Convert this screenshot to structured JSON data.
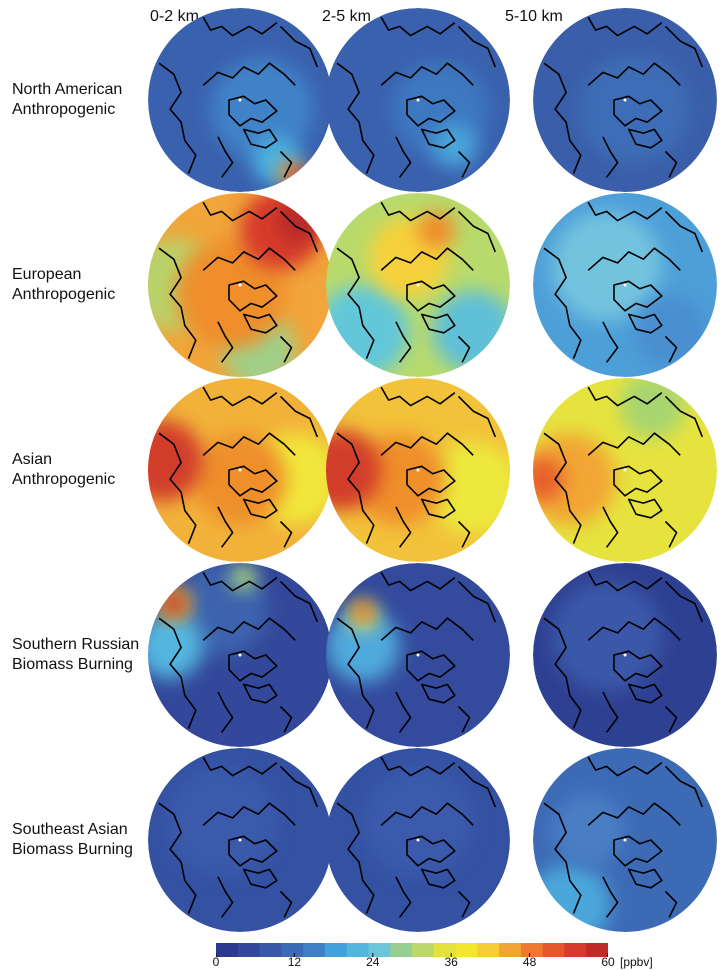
{
  "columns": [
    "0-2 km",
    "2-5 km",
    "5-10 km"
  ],
  "rows": [
    {
      "line1": "North American",
      "line2": "Anthropogenic",
      "panels": [
        {
          "base": "#3a61ad",
          "blobs": [
            {
              "fx": 0.62,
              "fy": 0.55,
              "r": 0.28,
              "color": "#3f82c8"
            },
            {
              "fx": 0.7,
              "fy": 0.83,
              "r": 0.13,
              "color": "#4cb3e0"
            },
            {
              "fx": 0.78,
              "fy": 0.9,
              "r": 0.07,
              "color": "#f08a26"
            },
            {
              "fx": 0.82,
              "fy": 0.92,
              "r": 0.04,
              "color": "#d7312a"
            }
          ]
        },
        {
          "base": "#3a61ad",
          "blobs": [
            {
              "fx": 0.62,
              "fy": 0.55,
              "r": 0.26,
              "color": "#3e78c0"
            },
            {
              "fx": 0.7,
              "fy": 0.75,
              "r": 0.12,
              "color": "#4aa5da"
            }
          ]
        },
        {
          "base": "#3a5ea9",
          "blobs": [
            {
              "fx": 0.55,
              "fy": 0.55,
              "r": 0.3,
              "color": "#3d6db6"
            }
          ]
        }
      ]
    },
    {
      "line1": "European",
      "line2": "Anthropogenic",
      "panels": [
        {
          "base": "#f1a53a",
          "blobs": [
            {
              "fx": 0.15,
              "fy": 0.5,
              "r": 0.25,
              "color": "#b9d26a"
            },
            {
              "fx": 0.6,
              "fy": 0.85,
              "r": 0.2,
              "color": "#9fd08a"
            },
            {
              "fx": 0.45,
              "fy": 0.55,
              "r": 0.3,
              "color": "#ef8e2c"
            },
            {
              "fx": 0.72,
              "fy": 0.2,
              "r": 0.22,
              "color": "#d73a2c"
            },
            {
              "fx": 0.82,
              "fy": 0.15,
              "r": 0.12,
              "color": "#b52a2a"
            }
          ]
        },
        {
          "base": "#b8da6c",
          "blobs": [
            {
              "fx": 0.2,
              "fy": 0.75,
              "r": 0.25,
              "color": "#62c7d9"
            },
            {
              "fx": 0.8,
              "fy": 0.75,
              "r": 0.22,
              "color": "#5fc0d8"
            },
            {
              "fx": 0.45,
              "fy": 0.35,
              "r": 0.22,
              "color": "#f6d13a"
            },
            {
              "fx": 0.6,
              "fy": 0.2,
              "r": 0.1,
              "color": "#ef8a2b"
            }
          ]
        },
        {
          "base": "#4d9fd8",
          "blobs": [
            {
              "fx": 0.4,
              "fy": 0.4,
              "r": 0.3,
              "color": "#73c3df"
            },
            {
              "fx": 0.75,
              "fy": 0.75,
              "r": 0.2,
              "color": "#4a8fd0"
            }
          ]
        }
      ]
    },
    {
      "line1": "Asian",
      "line2": "Anthropogenic",
      "panels": [
        {
          "base": "#f2b23a",
          "blobs": [
            {
              "fx": 0.8,
              "fy": 0.55,
              "r": 0.25,
              "color": "#f1e63a"
            },
            {
              "fx": 0.5,
              "fy": 0.55,
              "r": 0.25,
              "color": "#ee8f2c"
            },
            {
              "fx": 0.08,
              "fy": 0.45,
              "r": 0.22,
              "color": "#d23c2c"
            }
          ]
        },
        {
          "base": "#f2c23a",
          "blobs": [
            {
              "fx": 0.8,
              "fy": 0.6,
              "r": 0.25,
              "color": "#ece93c"
            },
            {
              "fx": 0.4,
              "fy": 0.55,
              "r": 0.25,
              "color": "#ef8f2c"
            },
            {
              "fx": 0.08,
              "fy": 0.5,
              "r": 0.22,
              "color": "#d23c2c"
            }
          ]
        },
        {
          "base": "#e6e33e",
          "blobs": [
            {
              "fx": 0.65,
              "fy": 0.15,
              "r": 0.18,
              "color": "#a8d56f"
            },
            {
              "fx": 0.2,
              "fy": 0.55,
              "r": 0.25,
              "color": "#f2a635"
            },
            {
              "fx": 0.05,
              "fy": 0.55,
              "r": 0.12,
              "color": "#e85e2c"
            }
          ]
        }
      ]
    },
    {
      "line1": "Southern Russian",
      "line2": "Biomass Burning",
      "panels": [
        {
          "base": "#33489a",
          "blobs": [
            {
              "fx": 0.4,
              "fy": 0.25,
              "r": 0.25,
              "color": "#3d63ae"
            },
            {
              "fx": 0.12,
              "fy": 0.45,
              "r": 0.18,
              "color": "#52b6df"
            },
            {
              "fx": 0.52,
              "fy": 0.08,
              "r": 0.07,
              "color": "#a7d67a"
            },
            {
              "fx": 0.14,
              "fy": 0.22,
              "r": 0.09,
              "color": "#eddd3a"
            },
            {
              "fx": 0.14,
              "fy": 0.22,
              "r": 0.07,
              "color": "#c42e2a"
            }
          ]
        },
        {
          "base": "#344b9d",
          "blobs": [
            {
              "fx": 0.2,
              "fy": 0.45,
              "r": 0.2,
              "color": "#4fa9dc"
            },
            {
              "fx": 0.2,
              "fy": 0.28,
              "r": 0.08,
              "color": "#f1d63a"
            },
            {
              "fx": 0.2,
              "fy": 0.26,
              "r": 0.04,
              "color": "#c9322a"
            }
          ]
        },
        {
          "base": "#2e4092",
          "blobs": [
            {
              "fx": 0.4,
              "fy": 0.4,
              "r": 0.3,
              "color": "#3a58a8"
            }
          ]
        }
      ]
    },
    {
      "line1": "Southeast Asian",
      "line2": "Biomass Burning",
      "panels": [
        {
          "base": "#3451a2",
          "blobs": [
            {
              "fx": 0.4,
              "fy": 0.4,
              "r": 0.3,
              "color": "#3a5aab"
            }
          ]
        },
        {
          "base": "#3451a2",
          "blobs": [
            {
              "fx": 0.5,
              "fy": 0.4,
              "r": 0.3,
              "color": "#3a5aab"
            }
          ]
        },
        {
          "base": "#3d6ab5",
          "blobs": [
            {
              "fx": 0.2,
              "fy": 0.85,
              "r": 0.22,
              "color": "#4ba7db"
            },
            {
              "fx": 0.3,
              "fy": 0.45,
              "r": 0.2,
              "color": "#4a7ec4"
            }
          ]
        }
      ]
    }
  ],
  "colorbar": {
    "colors": [
      "#2b3990",
      "#31489c",
      "#3859a8",
      "#3a6cb5",
      "#3e80c3",
      "#43a2dc",
      "#52b6df",
      "#6dc5d9",
      "#96cf91",
      "#bcd86c",
      "#e3e13b",
      "#f4e531",
      "#f7cc34",
      "#f1a536",
      "#ed7a2e",
      "#e5562d",
      "#d73a2c",
      "#bf2c28"
    ],
    "min": 0,
    "max": 60,
    "ticks": [
      {
        "value": 0,
        "label": "0"
      },
      {
        "value": 12,
        "label": "12"
      },
      {
        "value": 24,
        "label": "24"
      },
      {
        "value": 36,
        "label": "36"
      },
      {
        "value": 48,
        "label": "48"
      },
      {
        "value": 60,
        "label": "60"
      }
    ],
    "unit": "[ppbv]"
  }
}
